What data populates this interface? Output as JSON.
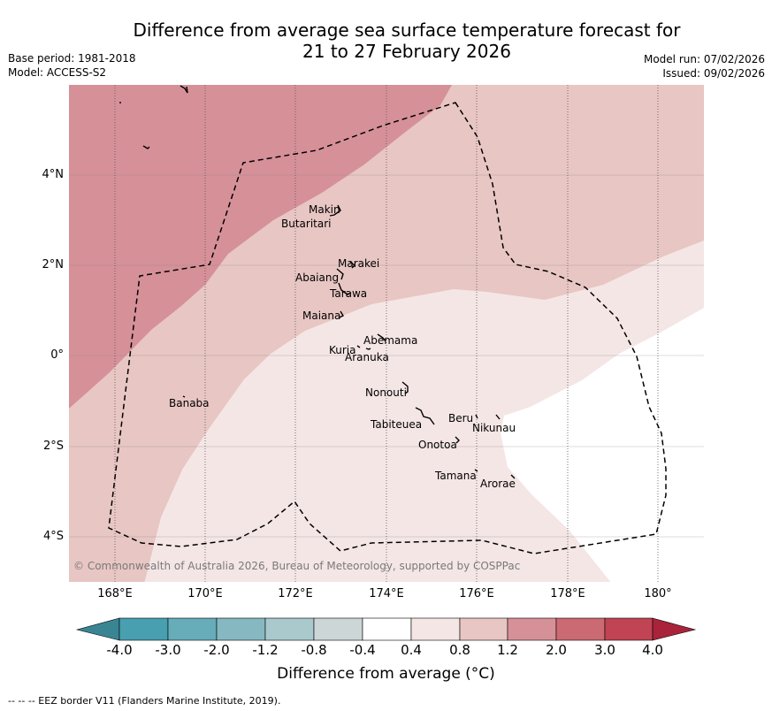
{
  "title_line1": "Difference from average sea surface temperature forecast for",
  "title_line2": "21 to 27 February 2026",
  "base_period": "Base period: 1981-2018",
  "model": "Model: ACCESS-S2",
  "model_run": "Model run: 07/02/2026",
  "issued": "Issued: 09/02/2026",
  "copyright": "© Commonwealth of Australia 2026, Bureau of Meteorology, supported by COSPPac",
  "latitude_labels": [
    "4°N",
    "2°N",
    "0°",
    "2°S",
    "4°S"
  ],
  "longitude_labels": [
    "168°E",
    "170°E",
    "172°E",
    "174°E",
    "176°E",
    "178°E",
    "180°"
  ],
  "islands": [
    "Makin",
    "Butaritari",
    "Marakei",
    "Abaiang",
    "Tarawa",
    "Maiana",
    "Abemama",
    "Kuria",
    "Aranuka",
    "Banaba",
    "Nonouti",
    "Tabiteuea",
    "Beru",
    "Nikunau",
    "Onotoa",
    "Tamana",
    "Arorae"
  ],
  "colorbar": {
    "ticks": [
      "-4.0",
      "-3.0",
      "-2.0",
      "-1.2",
      "-0.8",
      "-0.4",
      "0.4",
      "0.8",
      "1.2",
      "2.0",
      "3.0",
      "4.0"
    ],
    "colors": [
      "#3a8594",
      "#479fb0",
      "#66acb9",
      "#86b8c2",
      "#a9c9cd",
      "#ccd6d7",
      "#ffffff",
      "#f4e6e5",
      "#e8c6c3",
      "#d69098",
      "#cc6a73",
      "#c04453",
      "#a9233a"
    ],
    "label": "Difference from average (°C)"
  },
  "footer": "--  --  -- EEZ border V11 (Flanders Marine Institute, 2019)."
}
